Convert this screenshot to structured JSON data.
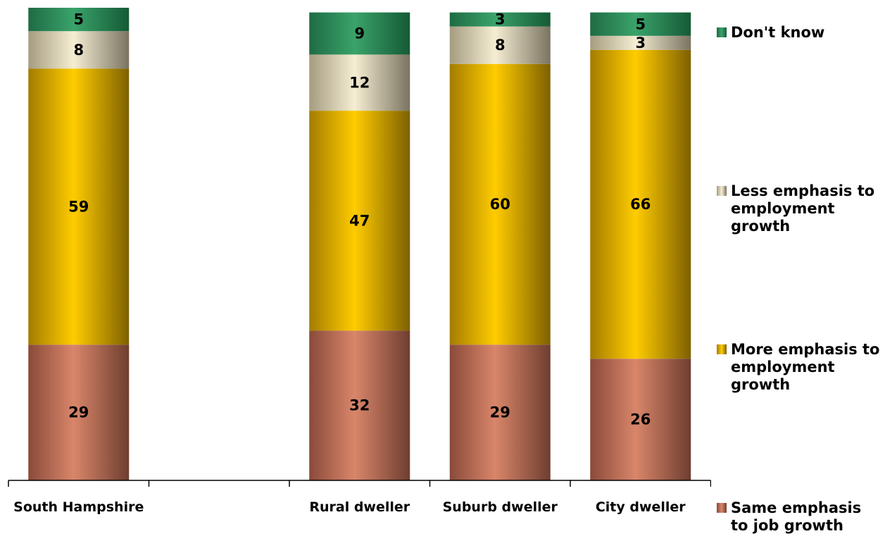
{
  "chart_data": {
    "type": "bar",
    "stacked": true,
    "orientation": "vertical",
    "categories": [
      "South Hampshire",
      "",
      "Rural dweller",
      "Suburb dweller",
      "City dweller"
    ],
    "series": [
      {
        "name": "Same emphasis to job growth",
        "values": [
          29,
          null,
          32,
          29,
          26
        ],
        "color": "#c97a60"
      },
      {
        "name": "More emphasis to employment growth",
        "values": [
          59,
          null,
          47,
          60,
          66
        ],
        "color": "#e8b400"
      },
      {
        "name": "Less emphasis to employment growth",
        "values": [
          8,
          null,
          12,
          8,
          3
        ],
        "color": "#d8cfae"
      },
      {
        "name": "Don't know",
        "values": [
          5,
          null,
          9,
          3,
          5
        ],
        "color": "#2e8b57"
      }
    ],
    "legend_position": "right",
    "grid": false,
    "ylim": [
      0,
      101
    ]
  },
  "legend": {
    "items": [
      {
        "label": "Don't know",
        "color": "#2e8b57"
      },
      {
        "label": "Less emphasis to employment growth",
        "color": "#d8cfae"
      },
      {
        "label": "More emphasis to employment growth",
        "color": "#e8b400"
      },
      {
        "label": "Same emphasis to job growth",
        "color": "#c97a60"
      }
    ]
  }
}
